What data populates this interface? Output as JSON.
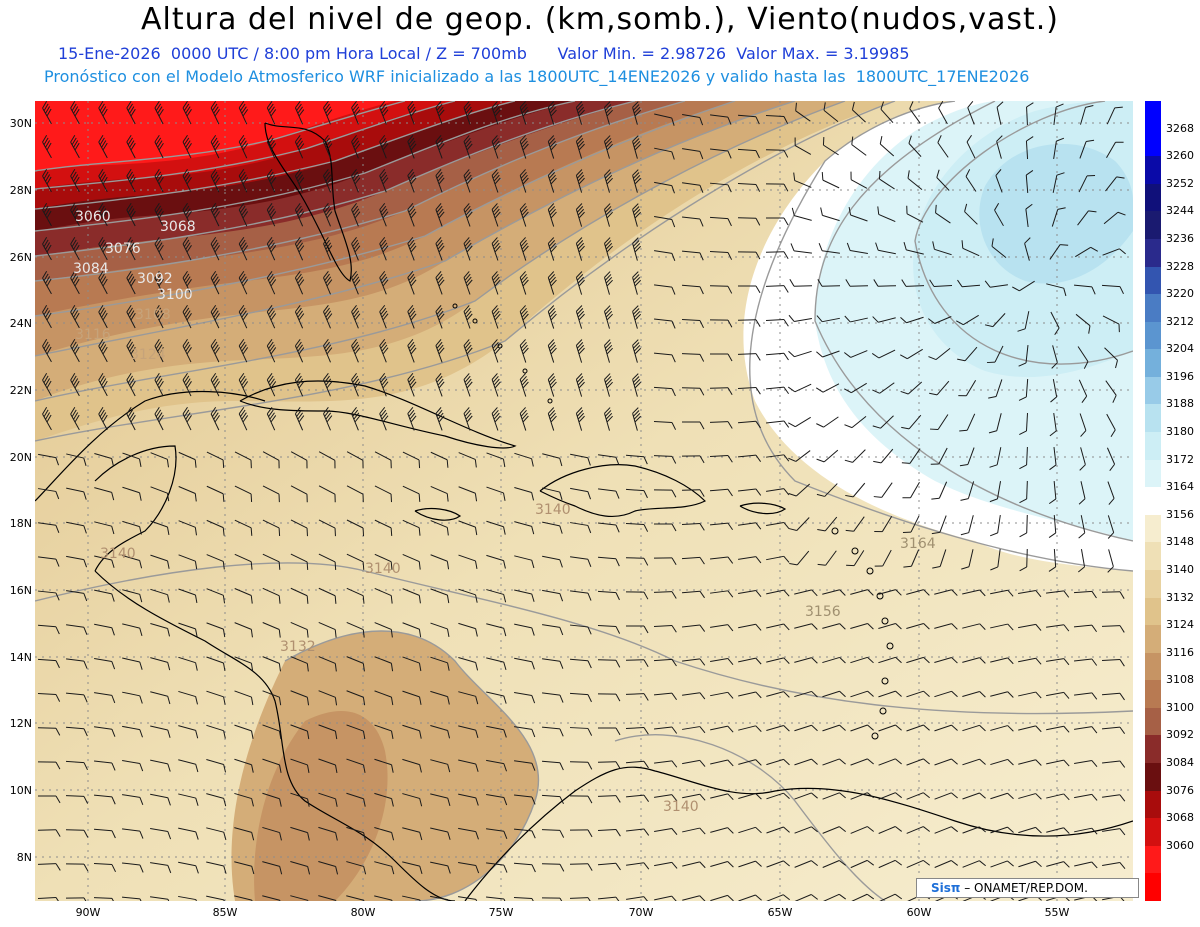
{
  "header": {
    "title": "Altura del nivel de geop. (km,somb.), Viento(nudos,vast.)",
    "date_line": "15-Ene-2026  0000 UTC / 8:00 pm Hora Local / Z = 700mb",
    "min_value": "Valor Min. = 2.98726",
    "max_value": "Valor Max. = 3.19985",
    "model_line": "Pronóstico con el Modelo Atmosferico WRF inicializado a las 1800UTC_14ENE2026 y valido hasta las  1800UTC_17ENE2026"
  },
  "axes": {
    "lat_labels": [
      "30N",
      "28N",
      "26N",
      "24N",
      "22N",
      "20N",
      "18N",
      "16N",
      "14N",
      "12N",
      "10N",
      "8N"
    ],
    "lon_labels": [
      "90W",
      "85W",
      "80W",
      "75W",
      "70W",
      "65W",
      "60W",
      "55W"
    ]
  },
  "contour_labels": [
    "3060",
    "3068",
    "3076",
    "3084",
    "3092",
    "3100",
    "3108",
    "3116",
    "3124",
    "3132",
    "3140",
    "3140",
    "3140",
    "3140",
    "3156",
    "3164"
  ],
  "legend": {
    "levels": [
      "3268",
      "3260",
      "3252",
      "3244",
      "3236",
      "3228",
      "3220",
      "3212",
      "3204",
      "3196",
      "3188",
      "3180",
      "3172",
      "3164",
      "3156",
      "3148",
      "3140",
      "3132",
      "3124",
      "3116",
      "3108",
      "3100",
      "3092",
      "3084",
      "3076",
      "3068",
      "3060"
    ],
    "colors": [
      "#0000ff",
      "#0a0aa8",
      "#10107a",
      "#1a1a70",
      "#2a2a8c",
      "#3355b0",
      "#4a7cc4",
      "#5b95d0",
      "#74b0dc",
      "#98cbe8",
      "#b8e2f0",
      "#cdeef5",
      "#dcf4f8",
      "#ffffff",
      "#f6edcf",
      "#efe0b6",
      "#e8d2a0",
      "#e0c38b",
      "#d4ad78",
      "#c69464",
      "#b87a52",
      "#a66046",
      "#8a2c2a",
      "#6a0f10",
      "#a80c0c",
      "#d31010",
      "#ff1a1a"
    ],
    "top_color": "#0000ff",
    "bottom_color": "#ff0000"
  },
  "credit": {
    "logo": "Sisπ",
    "text": " – ONAMET/REP.DOM."
  }
}
